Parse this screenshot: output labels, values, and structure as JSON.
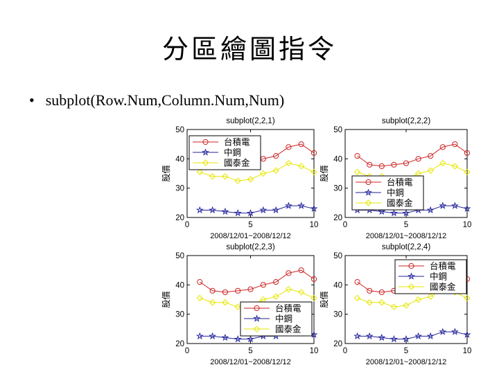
{
  "slide": {
    "title": "分區繪圖指令",
    "bullet_symbol": "•",
    "bullet_text": "subplot(Row.Num,Column.Num,Num)"
  },
  "colors": {
    "台積電": "#cc2222",
    "中鋼": "#22229a",
    "國泰金": "#e6e600"
  },
  "chart_data": [
    {
      "type": "line",
      "title": "subplot(2,2,1)",
      "xlabel": "2008/12/01~2008/12/12",
      "ylabel": "股價",
      "xlim": [
        0,
        10
      ],
      "ylim": [
        20,
        50
      ],
      "xticks": [
        0,
        5,
        10
      ],
      "yticks": [
        20,
        30,
        40,
        50
      ],
      "legend_position": "top-left",
      "x": [
        1,
        2,
        3,
        4,
        5,
        6,
        7,
        8,
        9,
        10
      ],
      "series": [
        {
          "name": "台積電",
          "marker": "circle",
          "values": [
            41,
            38,
            37.5,
            38,
            38.5,
            40,
            41,
            44,
            45,
            42
          ]
        },
        {
          "name": "中鋼",
          "marker": "star",
          "values": [
            22.5,
            22.5,
            22,
            21.5,
            21.5,
            22.5,
            22.5,
            24,
            24,
            23
          ]
        },
        {
          "name": "國泰金",
          "marker": "diamond",
          "values": [
            35.5,
            34,
            34,
            32.5,
            33,
            35,
            36,
            38.5,
            37.5,
            35.5
          ]
        }
      ]
    },
    {
      "type": "line",
      "title": "subplot(2,2,2)",
      "xlabel": "2008/12/01~2008/12/12",
      "ylabel": "股價",
      "xlim": [
        0,
        10
      ],
      "ylim": [
        20,
        50
      ],
      "xticks": [
        0,
        5,
        10
      ],
      "yticks": [
        20,
        30,
        40,
        50
      ],
      "legend_position": "center-left",
      "x": [
        1,
        2,
        3,
        4,
        5,
        6,
        7,
        8,
        9,
        10
      ],
      "series": [
        {
          "name": "台積電",
          "marker": "circle",
          "values": [
            41,
            38,
            37.5,
            38,
            38.5,
            40,
            41,
            44,
            45,
            42
          ]
        },
        {
          "name": "中鋼",
          "marker": "star",
          "values": [
            22.5,
            22.5,
            22,
            21.5,
            21.5,
            22.5,
            22.5,
            24,
            24,
            23
          ]
        },
        {
          "name": "國泰金",
          "marker": "diamond",
          "values": [
            35.5,
            34,
            34,
            32.5,
            33,
            35,
            36,
            38.5,
            37.5,
            35.5
          ]
        }
      ]
    },
    {
      "type": "line",
      "title": "subplot(2,2,3)",
      "xlabel": "2008/12/01~2008/12/12",
      "ylabel": "股價",
      "xlim": [
        0,
        10
      ],
      "ylim": [
        20,
        50
      ],
      "xticks": [
        0,
        5,
        10
      ],
      "yticks": [
        20,
        30,
        40,
        50
      ],
      "legend_position": "bottom-right",
      "x": [
        1,
        2,
        3,
        4,
        5,
        6,
        7,
        8,
        9,
        10
      ],
      "series": [
        {
          "name": "台積電",
          "marker": "circle",
          "values": [
            41,
            38,
            37.5,
            38,
            38.5,
            40,
            41,
            44,
            45,
            42
          ]
        },
        {
          "name": "中鋼",
          "marker": "star",
          "values": [
            22.5,
            22.5,
            22,
            21.5,
            21.5,
            22.5,
            22.5,
            24,
            24,
            23
          ]
        },
        {
          "name": "國泰金",
          "marker": "diamond",
          "values": [
            35.5,
            34,
            34,
            32.5,
            33,
            35,
            36,
            38.5,
            37.5,
            35.5
          ]
        }
      ]
    },
    {
      "type": "line",
      "title": "subplot(2,2,4)",
      "xlabel": "2008/12/01~2008/12/12",
      "ylabel": "股價",
      "xlim": [
        0,
        10
      ],
      "ylim": [
        20,
        50
      ],
      "xticks": [
        0,
        5,
        10
      ],
      "yticks": [
        20,
        30,
        40,
        50
      ],
      "legend_position": "top-right",
      "x": [
        1,
        2,
        3,
        4,
        5,
        6,
        7,
        8,
        9,
        10
      ],
      "series": [
        {
          "name": "台積電",
          "marker": "circle",
          "values": [
            41,
            38,
            37.5,
            38,
            38.5,
            40,
            41,
            44,
            45,
            42
          ]
        },
        {
          "name": "中鋼",
          "marker": "star",
          "values": [
            22.5,
            22.5,
            22,
            21.5,
            21.5,
            22.5,
            22.5,
            24,
            24,
            23
          ]
        },
        {
          "name": "國泰金",
          "marker": "diamond",
          "values": [
            35.5,
            34,
            34,
            32.5,
            33,
            35,
            36,
            38.5,
            37.5,
            35.5
          ]
        }
      ]
    }
  ]
}
